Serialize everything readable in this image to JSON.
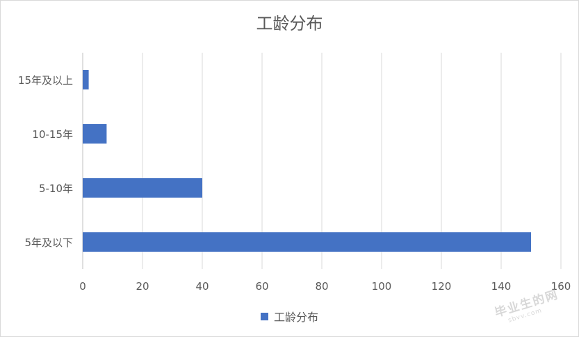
{
  "chart_data": {
    "type": "bar",
    "orientation": "horizontal",
    "title": "工龄分布",
    "categories": [
      "15年及以上",
      "10-15年",
      "5-10年",
      "5年及以下"
    ],
    "series": [
      {
        "name": "工龄分布",
        "values": [
          2,
          8,
          40,
          150
        ]
      }
    ],
    "xlim": [
      0,
      160
    ],
    "xticks": [
      0,
      20,
      40,
      60,
      80,
      100,
      120,
      140,
      160
    ],
    "grid": "vertical",
    "legend": "bottom",
    "bar_color": "#4472C4"
  },
  "watermark": {
    "text": "毕业生的网",
    "url": "sbvv.com"
  }
}
